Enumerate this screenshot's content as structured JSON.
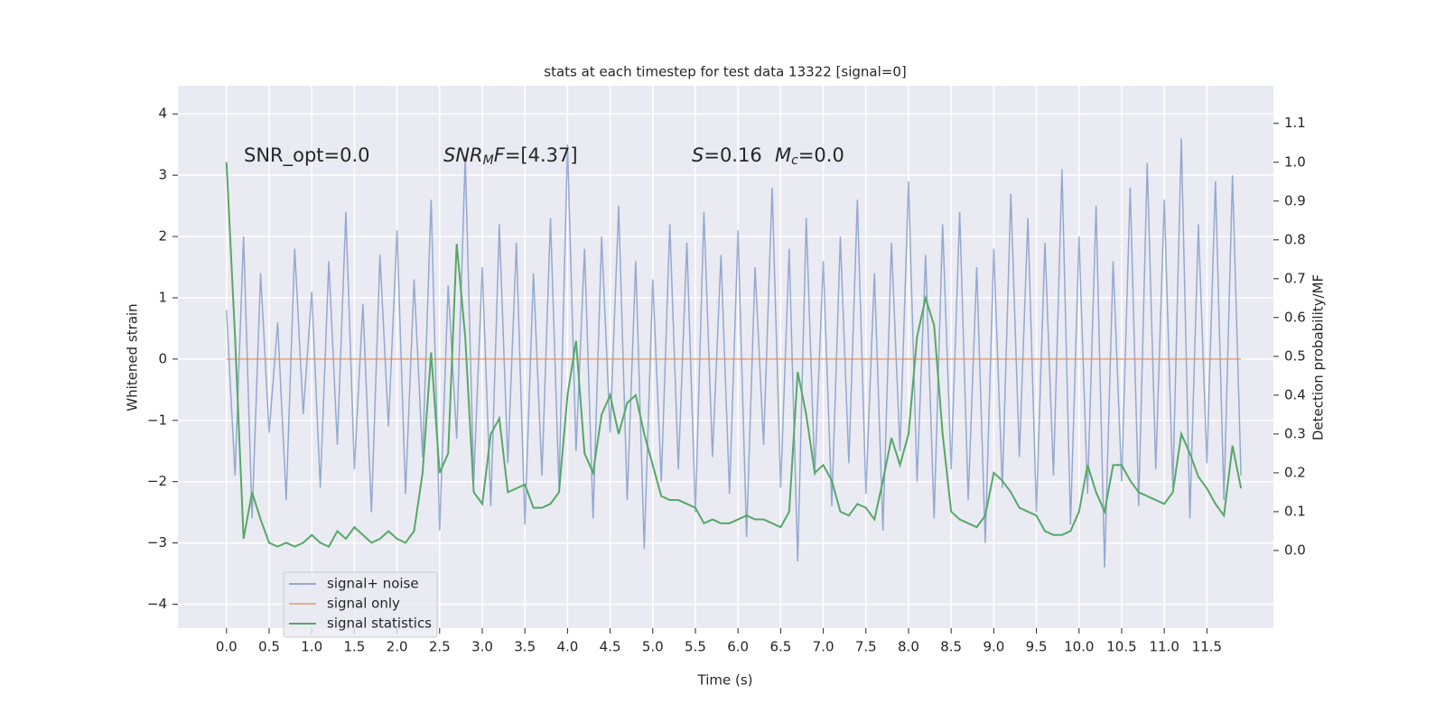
{
  "chart_data": {
    "type": "line",
    "title": "stats at each timestep for test data 13322 [signal=0]",
    "xlabel": "Time (s)",
    "ylabel": "Whitened strain",
    "y2label": "Detection probability/MF",
    "annotations": [
      [
        {
          "text": "SNR_opt=0.0"
        }
      ],
      [
        {
          "text": "SNR",
          "italic": true
        },
        {
          "text": "M",
          "italic": true,
          "sub": true
        },
        {
          "text": "F",
          "italic": true
        },
        {
          "text": "=[4.37]"
        }
      ],
      [
        {
          "text": "S",
          "italic": true
        },
        {
          "text": "=0.16"
        }
      ],
      [
        {
          "text": "M",
          "italic": true
        },
        {
          "text": "c",
          "italic": true,
          "sub": true
        },
        {
          "text": "=0.0"
        }
      ]
    ],
    "grid": true,
    "legend": "lower left",
    "xlim": [
      -0.57,
      12.28
    ],
    "ylim": [
      -4.39,
      4.46
    ],
    "y2lim": [
      -0.2,
      1.197
    ],
    "xticks": [
      {
        "value": 0,
        "label": "0.0"
      },
      0.5,
      {
        "value": 1,
        "label": "1.0"
      },
      1.5,
      {
        "value": 2,
        "label": "2.0"
      },
      2.5,
      {
        "value": 3,
        "label": "3.0"
      },
      3.5,
      {
        "value": 4,
        "label": "4.0"
      },
      4.5,
      {
        "value": 5,
        "label": "5.0"
      },
      5.5,
      {
        "value": 6,
        "label": "6.0"
      },
      6.5,
      {
        "value": 7,
        "label": "7.0"
      },
      7.5,
      {
        "value": 8,
        "label": "8.0"
      },
      8.5,
      {
        "value": 9,
        "label": "9.0"
      },
      9.5,
      {
        "value": 10,
        "label": "10.0"
      },
      10.5,
      {
        "value": 11,
        "label": "11.0"
      },
      11.5
    ],
    "yticks": [
      {
        "value": -4,
        "label": "−4"
      },
      {
        "value": -3,
        "label": "−3"
      },
      {
        "value": -2,
        "label": "−2"
      },
      {
        "value": -1,
        "label": "−1"
      },
      0,
      1,
      2,
      3,
      4
    ],
    "y2ticks": [
      {
        "value": 0,
        "label": "0.0"
      },
      0.1,
      0.2,
      0.3,
      0.4,
      0.5,
      0.6,
      0.7,
      0.8,
      0.9,
      {
        "value": 1,
        "label": "1.0"
      },
      1.1
    ],
    "x": [
      0,
      0.1,
      0.2,
      0.3,
      0.4,
      0.5,
      0.6,
      0.7,
      0.8,
      0.9,
      1,
      1.1,
      1.2,
      1.3,
      1.4,
      1.5,
      1.6,
      1.7,
      1.8,
      1.9,
      2,
      2.1,
      2.2,
      2.3,
      2.4,
      2.5,
      2.6,
      2.7,
      2.8,
      2.9,
      3,
      3.1,
      3.2,
      3.3,
      3.4,
      3.5,
      3.6,
      3.7,
      3.8,
      3.9,
      4,
      4.1,
      4.2,
      4.3,
      4.4,
      4.5,
      4.6,
      4.7,
      4.8,
      4.9,
      5,
      5.1,
      5.2,
      5.3,
      5.4,
      5.5,
      5.6,
      5.7,
      5.8,
      5.9,
      6,
      6.1,
      6.2,
      6.3,
      6.4,
      6.5,
      6.6,
      6.7,
      6.8,
      6.9,
      7,
      7.1,
      7.2,
      7.3,
      7.4,
      7.5,
      7.6,
      7.7,
      7.8,
      7.9,
      8,
      8.1,
      8.2,
      8.3,
      8.4,
      8.5,
      8.6,
      8.7,
      8.8,
      8.9,
      9,
      9.1,
      9.2,
      9.3,
      9.4,
      9.5,
      9.6,
      9.7,
      9.8,
      9.9,
      10,
      10.1,
      10.2,
      10.3,
      10.4,
      10.5,
      10.6,
      10.7,
      10.8,
      10.9,
      11,
      11.1,
      11.2,
      11.3,
      11.4,
      11.5,
      11.6,
      11.7,
      11.8,
      11.9
    ],
    "series": [
      {
        "name": "signal+ noise",
        "color": "#4c72b0",
        "values": [
          0.8,
          -1.9,
          2.0,
          -2.6,
          1.4,
          -1.2,
          0.6,
          -2.3,
          1.8,
          -0.9,
          1.1,
          -2.1,
          1.6,
          -1.4,
          2.4,
          -1.8,
          0.9,
          -2.5,
          1.7,
          -1.1,
          2.1,
          -2.2,
          1.3,
          -1.6,
          2.6,
          -2.8,
          1.2,
          -1.3,
          3.3,
          -2.0,
          1.5,
          -2.4,
          2.2,
          -1.7,
          1.9,
          -2.7,
          1.4,
          -1.9,
          2.3,
          -2.1,
          3.5,
          -1.5,
          1.8,
          -2.6,
          2.0,
          -1.2,
          2.5,
          -2.3,
          1.6,
          -3.1,
          1.3,
          -2.0,
          2.2,
          -1.8,
          1.9,
          -2.5,
          2.4,
          -1.6,
          1.7,
          -2.2,
          2.1,
          -2.9,
          1.5,
          -1.4,
          2.8,
          -2.1,
          1.8,
          -3.3,
          2.3,
          -1.9,
          1.6,
          -2.4,
          2.0,
          -1.7,
          2.6,
          -2.2,
          1.4,
          -2.8,
          1.9,
          -1.5,
          2.9,
          -2.0,
          1.7,
          -2.6,
          2.2,
          -1.8,
          2.4,
          -2.3,
          1.5,
          -3.0,
          1.8,
          -2.1,
          2.7,
          -1.6,
          2.3,
          -2.5,
          1.9,
          -1.9,
          3.1,
          -2.7,
          2.0,
          -2.2,
          2.5,
          -3.4,
          1.6,
          -2.0,
          2.8,
          -2.4,
          3.2,
          -1.8,
          2.6,
          -2.1,
          3.6,
          -2.6,
          2.2,
          -1.7,
          2.9,
          -2.3,
          3.0,
          -1.9
        ]
      },
      {
        "name": "signal only",
        "color": "#dd8452",
        "values": [
          0,
          0,
          0,
          0,
          0,
          0,
          0,
          0,
          0,
          0,
          0,
          0,
          0,
          0,
          0,
          0,
          0,
          0,
          0,
          0,
          0,
          0,
          0,
          0,
          0,
          0,
          0,
          0,
          0,
          0,
          0,
          0,
          0,
          0,
          0,
          0,
          0,
          0,
          0,
          0,
          0,
          0,
          0,
          0,
          0,
          0,
          0,
          0,
          0,
          0,
          0,
          0,
          0,
          0,
          0,
          0,
          0,
          0,
          0,
          0,
          0,
          0,
          0,
          0,
          0,
          0,
          0,
          0,
          0,
          0,
          0,
          0,
          0,
          0,
          0,
          0,
          0,
          0,
          0,
          0,
          0,
          0,
          0,
          0,
          0,
          0,
          0,
          0,
          0,
          0,
          0,
          0,
          0,
          0,
          0,
          0,
          0,
          0,
          0,
          0,
          0,
          0,
          0,
          0,
          0,
          0,
          0,
          0,
          0,
          0,
          0,
          0,
          0,
          0,
          0,
          0,
          0,
          0,
          0,
          0
        ]
      },
      {
        "name": "signal statistics",
        "color": "#55a868",
        "axis": "y2",
        "values": [
          1.0,
          0.55,
          0.03,
          0.15,
          0.08,
          0.02,
          0.01,
          0.02,
          0.01,
          0.02,
          0.04,
          0.02,
          0.01,
          0.05,
          0.03,
          0.06,
          0.04,
          0.02,
          0.03,
          0.05,
          0.03,
          0.02,
          0.05,
          0.2,
          0.51,
          0.2,
          0.25,
          0.79,
          0.55,
          0.15,
          0.12,
          0.3,
          0.34,
          0.15,
          0.16,
          0.17,
          0.11,
          0.11,
          0.12,
          0.15,
          0.4,
          0.54,
          0.25,
          0.2,
          0.35,
          0.4,
          0.3,
          0.38,
          0.4,
          0.3,
          0.22,
          0.14,
          0.13,
          0.13,
          0.12,
          0.11,
          0.07,
          0.08,
          0.07,
          0.07,
          0.08,
          0.09,
          0.08,
          0.08,
          0.07,
          0.06,
          0.1,
          0.46,
          0.35,
          0.2,
          0.22,
          0.18,
          0.1,
          0.09,
          0.12,
          0.11,
          0.08,
          0.18,
          0.29,
          0.22,
          0.3,
          0.55,
          0.65,
          0.58,
          0.3,
          0.1,
          0.08,
          0.07,
          0.06,
          0.09,
          0.2,
          0.18,
          0.15,
          0.11,
          0.1,
          0.09,
          0.05,
          0.04,
          0.04,
          0.05,
          0.1,
          0.22,
          0.15,
          0.1,
          0.22,
          0.22,
          0.18,
          0.15,
          0.14,
          0.13,
          0.12,
          0.15,
          0.3,
          0.25,
          0.19,
          0.16,
          0.12,
          0.09,
          0.27,
          0.16
        ]
      }
    ]
  }
}
